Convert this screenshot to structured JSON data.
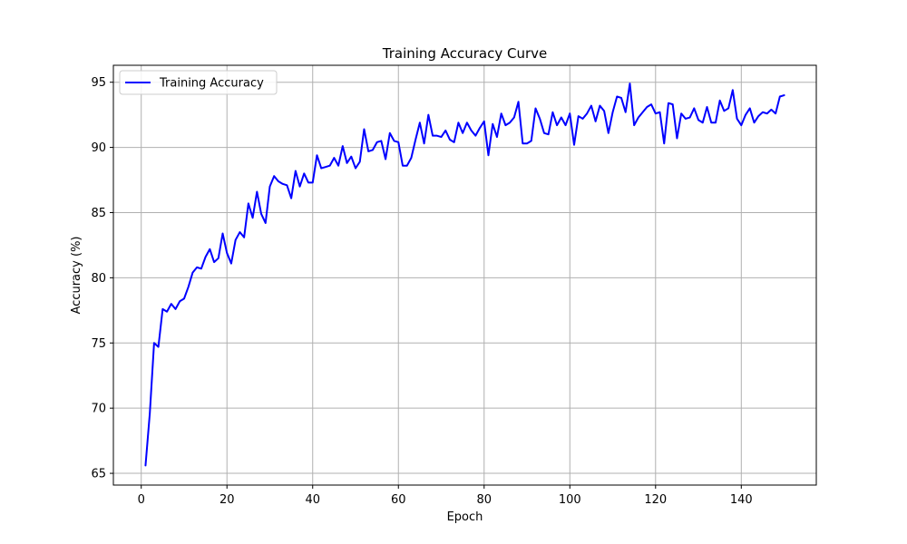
{
  "chart_data": {
    "type": "line",
    "title": "Training Accuracy Curve",
    "xlabel": "Epoch",
    "ylabel": "Accuracy (%)",
    "xlim": [
      -6.5,
      157.5
    ],
    "ylim": [
      64.1,
      96.3
    ],
    "xticks": [
      0,
      20,
      40,
      60,
      80,
      100,
      120,
      140
    ],
    "yticks": [
      65,
      70,
      75,
      80,
      85,
      90,
      95
    ],
    "grid": true,
    "legend_position": "top-left",
    "series": [
      {
        "name": "Training Accuracy",
        "color": "#0000ff",
        "x": [
          1,
          2,
          3,
          4,
          5,
          6,
          7,
          8,
          9,
          10,
          11,
          12,
          13,
          14,
          15,
          16,
          17,
          18,
          19,
          20,
          21,
          22,
          23,
          24,
          25,
          26,
          27,
          28,
          29,
          30,
          31,
          32,
          33,
          34,
          35,
          36,
          37,
          38,
          39,
          40,
          41,
          42,
          43,
          44,
          45,
          46,
          47,
          48,
          49,
          50,
          51,
          52,
          53,
          54,
          55,
          56,
          57,
          58,
          59,
          60,
          61,
          62,
          63,
          64,
          65,
          66,
          67,
          68,
          69,
          70,
          71,
          72,
          73,
          74,
          75,
          76,
          77,
          78,
          79,
          80,
          81,
          82,
          83,
          84,
          85,
          86,
          87,
          88,
          89,
          90,
          91,
          92,
          93,
          94,
          95,
          96,
          97,
          98,
          99,
          100,
          101,
          102,
          103,
          104,
          105,
          106,
          107,
          108,
          109,
          110,
          111,
          112,
          113,
          114,
          115,
          116,
          117,
          118,
          119,
          120,
          121,
          122,
          123,
          124,
          125,
          126,
          127,
          128,
          129,
          130,
          131,
          132,
          133,
          134,
          135,
          136,
          137,
          138,
          139,
          140,
          141,
          142,
          143,
          144,
          145,
          146,
          147,
          148,
          149,
          150
        ],
        "y": [
          65.6,
          69.6,
          75.0,
          74.7,
          77.6,
          77.4,
          78.0,
          77.6,
          78.2,
          78.4,
          79.3,
          80.4,
          80.8,
          80.7,
          81.6,
          82.2,
          81.2,
          81.5,
          83.4,
          81.9,
          81.1,
          82.9,
          83.5,
          83.1,
          85.7,
          84.6,
          86.6,
          84.9,
          84.2,
          87.0,
          87.8,
          87.4,
          87.2,
          87.1,
          86.1,
          88.2,
          87.0,
          88.0,
          87.3,
          87.3,
          89.4,
          88.4,
          88.5,
          88.6,
          89.2,
          88.6,
          90.1,
          88.8,
          89.3,
          88.4,
          88.9,
          91.4,
          89.7,
          89.8,
          90.4,
          90.5,
          89.1,
          91.1,
          90.5,
          90.4,
          88.6,
          88.6,
          89.2,
          90.6,
          91.9,
          90.3,
          92.5,
          90.9,
          90.9,
          90.8,
          91.3,
          90.6,
          90.4,
          91.9,
          91.1,
          91.9,
          91.3,
          90.9,
          91.5,
          92.0,
          89.4,
          91.8,
          90.8,
          92.6,
          91.7,
          91.9,
          92.3,
          93.5,
          90.3,
          90.3,
          90.5,
          93.0,
          92.2,
          91.1,
          91.0,
          92.7,
          91.7,
          92.3,
          91.7,
          92.6,
          90.2,
          92.4,
          92.2,
          92.6,
          93.2,
          92.0,
          93.2,
          92.8,
          91.1,
          92.7,
          93.9,
          93.8,
          92.7,
          94.9,
          91.7,
          92.3,
          92.7,
          93.1,
          93.3,
          92.6,
          92.7,
          90.3,
          93.4,
          93.3,
          90.7,
          92.6,
          92.2,
          92.3,
          93.0,
          92.1,
          91.9,
          93.1,
          91.9,
          91.9,
          93.6,
          92.8,
          93.0,
          94.4,
          92.2,
          91.7,
          92.5,
          93.0,
          91.9,
          92.4,
          92.7,
          92.6,
          92.9,
          92.6,
          93.9,
          94.0
        ]
      }
    ]
  }
}
